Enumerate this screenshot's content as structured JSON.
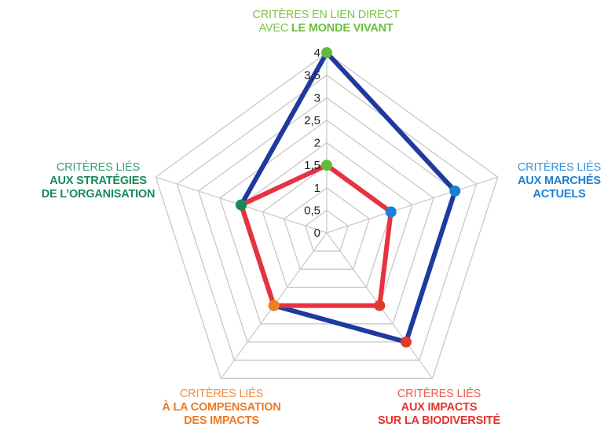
{
  "chart_data": {
    "type": "radar",
    "title": "",
    "axes": [
      {
        "key": "monde-vivant",
        "label_thin": "CRITÈRES EN LIEN DIRECT",
        "label_prefix": "AVEC ",
        "label_bold": [
          "LE MONDE VIVANT"
        ],
        "color": "#6cbf3f",
        "marker_color": "#5fbb3c"
      },
      {
        "key": "marches-actuels",
        "label_thin": "CRITÈRES LIÉS",
        "label_prefix": "",
        "label_bold": [
          "AUX MARCHÉS",
          "ACTUELS"
        ],
        "color": "#1e7fd0",
        "marker_color": "#1c7fd6"
      },
      {
        "key": "impacts-biodiversite",
        "label_thin": "CRITÈRES LIÉS",
        "label_prefix": "",
        "label_bold": [
          "AUX IMPACTS",
          "SUR LA BIODIVERSITÉ"
        ],
        "color": "#e3342c",
        "marker_color": "#e13a2c"
      },
      {
        "key": "compensation-impacts",
        "label_thin": "CRITÈRES LIÉS",
        "label_prefix": "",
        "label_bold": [
          "À LA COMPENSATION",
          "DES IMPACTS"
        ],
        "color": "#ee7a23",
        "marker_color": "#ef7d22"
      },
      {
        "key": "strategies-organisation",
        "label_thin": "CRITÈRES LIÉS",
        "label_prefix": "",
        "label_bold": [
          "AUX STRATÉGIES",
          "DE L’ORGANISATION"
        ],
        "color": "#178a5b",
        "marker_color": "#138a58"
      }
    ],
    "rlim": [
      0,
      4
    ],
    "ticks": [
      "0",
      "0,5",
      "1",
      "1,5",
      "2",
      "2,5",
      "3",
      "3,5",
      "4"
    ],
    "tick_values": [
      0,
      0.5,
      1,
      1.5,
      2,
      2.5,
      3,
      3.5,
      4
    ],
    "grid": true,
    "grid_color": "#c8c8c8",
    "series": [
      {
        "color": "#1f3a9e",
        "values": [
          4,
          3,
          3,
          2,
          2
        ]
      },
      {
        "color": "#e8323f",
        "values": [
          1.5,
          1.5,
          2,
          2,
          2
        ]
      }
    ]
  }
}
